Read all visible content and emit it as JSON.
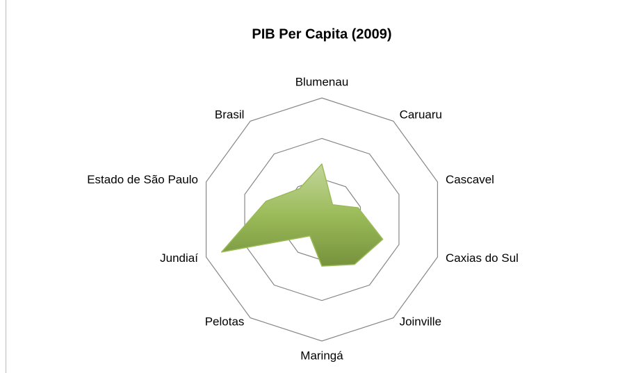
{
  "chart_data": {
    "type": "radar",
    "title": "PIB Per Capita (2009)",
    "categories": [
      "Blumenau",
      "Caruaru",
      "Cascavel",
      "Caxias do Sul",
      "Joinville",
      "Maringá",
      "Pelotas",
      "Jundiaí",
      "Estado de São Paulo",
      "Brasil"
    ],
    "values": [
      1.37,
      0.45,
      0.94,
      1.58,
      1.37,
      1.15,
      0.5,
      2.6,
      1.45,
      0.94
    ],
    "color": "#9bbb59",
    "ylim": [
      0,
      3
    ],
    "yticks": [
      1,
      2,
      3
    ],
    "grid": true
  }
}
